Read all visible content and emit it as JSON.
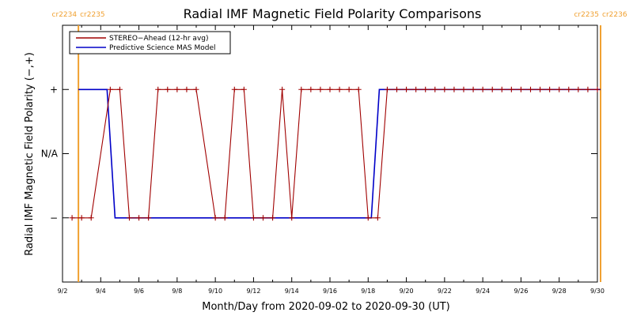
{
  "chart_data": {
    "type": "line",
    "title": "Radial IMF Magnetic Field Polarity Comparisons",
    "xlabel": "Month/Day from 2020-09-02 to 2020-09-30 (UT)",
    "ylabel": "Radial IMF Magnetic Field Polarity (−,+)",
    "x_range": [
      "2020-09-02",
      "2020-09-30"
    ],
    "x_tick_labels": [
      "9/2",
      "9/4",
      "9/6",
      "9/8",
      "9/10",
      "9/12",
      "9/14",
      "9/16",
      "9/18",
      "9/20",
      "9/22",
      "9/24",
      "9/26",
      "9/28",
      "9/30"
    ],
    "y_tick_labels": [
      {
        "label": "+",
        "value": 1
      },
      {
        "label": "N/A",
        "value": 0
      },
      {
        "label": "−",
        "value": -1
      }
    ],
    "ylim": [
      -2,
      2
    ],
    "rotation_markers": [
      {
        "left_label": "cr2234",
        "right_label": "cr2235",
        "date": "2020-09-02T20:00"
      },
      {
        "left_label": "cr2235",
        "right_label": "cr2236",
        "date": "2020-09-30T04:00"
      }
    ],
    "marker_color": "#f0a030",
    "legend_position": "top-left",
    "series": [
      {
        "name": "STEREO−Ahead (12-hr avg)",
        "color": "#a00000",
        "marker": "+",
        "points": [
          [
            "2020-09-02T12:00",
            -1
          ],
          [
            "2020-09-03T00:00",
            -1
          ],
          [
            "2020-09-03T12:00",
            -1
          ],
          [
            "2020-09-04T12:00",
            1
          ],
          [
            "2020-09-05T00:00",
            1
          ],
          [
            "2020-09-05T12:00",
            -1
          ],
          [
            "2020-09-06T00:00",
            -1
          ],
          [
            "2020-09-06T12:00",
            -1
          ],
          [
            "2020-09-07T00:00",
            1
          ],
          [
            "2020-09-07T12:00",
            1
          ],
          [
            "2020-09-08T00:00",
            1
          ],
          [
            "2020-09-08T12:00",
            1
          ],
          [
            "2020-09-09T00:00",
            1
          ],
          [
            "2020-09-10T00:00",
            -1
          ],
          [
            "2020-09-10T12:00",
            -1
          ],
          [
            "2020-09-11T00:00",
            1
          ],
          [
            "2020-09-11T12:00",
            1
          ],
          [
            "2020-09-12T00:00",
            -1
          ],
          [
            "2020-09-12T12:00",
            -1
          ],
          [
            "2020-09-13T00:00",
            -1
          ],
          [
            "2020-09-13T12:00",
            1
          ],
          [
            "2020-09-14T00:00",
            -1
          ],
          [
            "2020-09-14T12:00",
            1
          ],
          [
            "2020-09-15T00:00",
            1
          ],
          [
            "2020-09-15T12:00",
            1
          ],
          [
            "2020-09-16T00:00",
            1
          ],
          [
            "2020-09-16T12:00",
            1
          ],
          [
            "2020-09-17T00:00",
            1
          ],
          [
            "2020-09-17T12:00",
            1
          ],
          [
            "2020-09-18T00:00",
            -1
          ],
          [
            "2020-09-18T12:00",
            -1
          ],
          [
            "2020-09-19T00:00",
            1
          ],
          [
            "2020-09-19T12:00",
            1
          ],
          [
            "2020-09-20T00:00",
            1
          ],
          [
            "2020-09-20T12:00",
            1
          ],
          [
            "2020-09-21T00:00",
            1
          ],
          [
            "2020-09-21T12:00",
            1
          ],
          [
            "2020-09-22T00:00",
            1
          ],
          [
            "2020-09-22T12:00",
            1
          ],
          [
            "2020-09-23T00:00",
            1
          ],
          [
            "2020-09-23T12:00",
            1
          ],
          [
            "2020-09-24T00:00",
            1
          ],
          [
            "2020-09-24T12:00",
            1
          ],
          [
            "2020-09-25T00:00",
            1
          ],
          [
            "2020-09-25T12:00",
            1
          ],
          [
            "2020-09-26T00:00",
            1
          ],
          [
            "2020-09-26T12:00",
            1
          ],
          [
            "2020-09-27T00:00",
            1
          ],
          [
            "2020-09-27T12:00",
            1
          ],
          [
            "2020-09-28T00:00",
            1
          ],
          [
            "2020-09-28T12:00",
            1
          ],
          [
            "2020-09-29T00:00",
            1
          ],
          [
            "2020-09-29T12:00",
            1
          ],
          [
            "2020-09-30T00:00",
            1
          ]
        ]
      },
      {
        "name": "Predictive Science MAS Model",
        "color": "#0000c8",
        "points": [
          [
            "2020-09-02T20:00",
            1
          ],
          [
            "2020-09-04T08:00",
            1
          ],
          [
            "2020-09-04T18:00",
            -1
          ],
          [
            "2020-09-18T04:00",
            -1
          ],
          [
            "2020-09-18T14:00",
            1
          ],
          [
            "2020-09-30T04:00",
            1
          ]
        ]
      }
    ]
  }
}
